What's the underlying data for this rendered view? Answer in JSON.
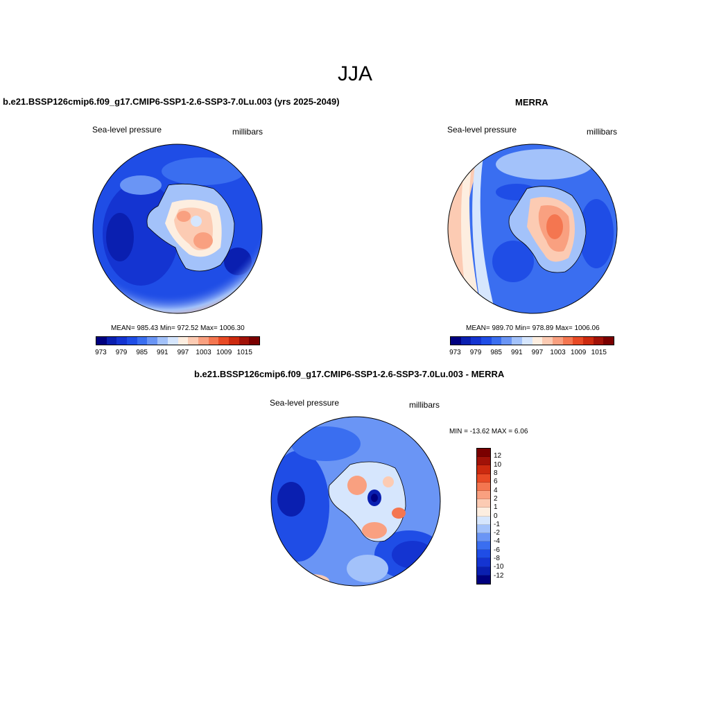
{
  "figure": {
    "title": "JJA"
  },
  "panels": {
    "model": {
      "title": "b.e21.BSSP126cmip6.f09_g17.CMIP6-SSP1-2.6-SSP3-7.0Lu.003 (yrs 2025-2049)",
      "left_label": "Sea-level pressure",
      "right_label": "millibars",
      "stats": "MEAN= 985.43   Min= 972.52   Max= 1006.30"
    },
    "obs": {
      "title": "MERRA",
      "left_label": "Sea-level pressure",
      "right_label": "millibars",
      "stats": "MEAN= 989.70   Min= 978.89   Max= 1006.06"
    },
    "diff": {
      "title": "b.e21.BSSP126cmip6.f09_g17.CMIP6-SSP1-2.6-SSP3-7.0Lu.003 - MERRA",
      "left_label": "Sea-level pressure",
      "right_label": "millibars",
      "stats": "MIN = -13.62 MAX =   6.06"
    }
  },
  "colorbars": {
    "abs_ticks": [
      "973",
      "979",
      "985",
      "991",
      "997",
      "1003",
      "1009",
      "1015"
    ],
    "abs_colors": [
      "#00007f",
      "#0a1fb0",
      "#1434d1",
      "#1f4de6",
      "#3a6ef0",
      "#6a95f5",
      "#a3c2fa",
      "#d6e6fd",
      "#fdeee0",
      "#fccbb3",
      "#f9a080",
      "#f47650",
      "#e84a25",
      "#cc2a0f",
      "#a11208",
      "#7a0000"
    ],
    "diff_ticks": [
      "12",
      "10",
      "8",
      "6",
      "4",
      "2",
      "1",
      "0",
      "-1",
      "-2",
      "-4",
      "-6",
      "-8",
      "-10",
      "-12"
    ],
    "diff_colors": [
      "#7a0000",
      "#a11208",
      "#cc2a0f",
      "#e84a25",
      "#f47650",
      "#f9a080",
      "#fccbb3",
      "#fdeee0",
      "#d6e6fd",
      "#a3c2fa",
      "#6a95f5",
      "#3a6ef0",
      "#1f4de6",
      "#1434d1",
      "#0a1fb0",
      "#00007f"
    ]
  }
}
